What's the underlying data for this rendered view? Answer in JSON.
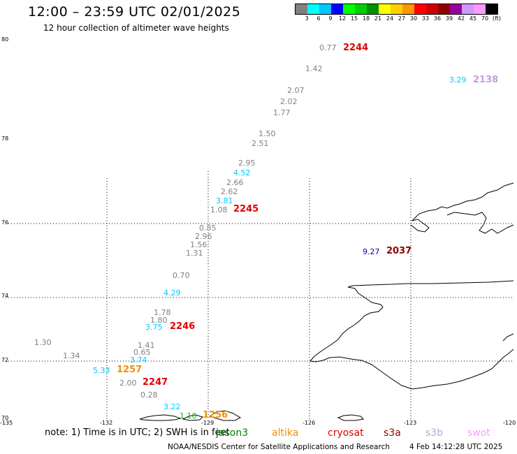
{
  "header": {
    "title": "12:00 – 23:59 UTC 02/01/2025",
    "subtitle": "12 hour collection of altimeter wave heights"
  },
  "colorbar": {
    "colors": [
      "#808080",
      "#00ffff",
      "#00c8ff",
      "#0000ff",
      "#00ff00",
      "#00d000",
      "#009000",
      "#ffff00",
      "#ffd000",
      "#ff9900",
      "#ff0000",
      "#d00000",
      "#900000",
      "#990099",
      "#cc99ff",
      "#ff99ff",
      "#000000"
    ],
    "labels": [
      "3",
      "6",
      "9",
      "12",
      "15",
      "18",
      "21",
      "24",
      "27",
      "30",
      "33",
      "36",
      "39",
      "42",
      "45",
      "70",
      "(ft)"
    ]
  },
  "axes": {
    "y_ticks": [
      "80",
      "78",
      "76",
      "74",
      "72",
      "70"
    ],
    "x_ticks": [
      "-135",
      "-132",
      "-129",
      "-126",
      "-123",
      "-120"
    ]
  },
  "wave_values": [
    {
      "text": "0.77",
      "color": "#808080"
    },
    {
      "text": "1.42",
      "color": "#808080"
    },
    {
      "text": "2.07",
      "color": "#808080"
    },
    {
      "text": "2.02",
      "color": "#808080"
    },
    {
      "text": "1.77",
      "color": "#808080"
    },
    {
      "text": "1.50",
      "color": "#808080"
    },
    {
      "text": "2.51",
      "color": "#808080"
    },
    {
      "text": "2.95",
      "color": "#808080"
    },
    {
      "text": "4.52",
      "color": "#00c8ff"
    },
    {
      "text": "2.66",
      "color": "#808080"
    },
    {
      "text": "2.62",
      "color": "#808080"
    },
    {
      "text": "3.81",
      "color": "#00c8ff"
    },
    {
      "text": "1.08",
      "color": "#808080"
    },
    {
      "text": "0.85",
      "color": "#808080"
    },
    {
      "text": "2.96",
      "color": "#808080"
    },
    {
      "text": "1.56",
      "color": "#808080"
    },
    {
      "text": "1.31",
      "color": "#808080"
    },
    {
      "text": "0.70",
      "color": "#808080"
    },
    {
      "text": "4.29",
      "color": "#00c8ff"
    },
    {
      "text": "1.78",
      "color": "#808080"
    },
    {
      "text": "1.80",
      "color": "#808080"
    },
    {
      "text": "3.75",
      "color": "#00c8ff"
    },
    {
      "text": "1.41",
      "color": "#808080"
    },
    {
      "text": "0.65",
      "color": "#808080"
    },
    {
      "text": "3.74",
      "color": "#00c8ff"
    },
    {
      "text": "1.30",
      "color": "#808080"
    },
    {
      "text": "1.34",
      "color": "#808080"
    },
    {
      "text": "5.33",
      "color": "#00c8ff"
    },
    {
      "text": "2.00",
      "color": "#808080"
    },
    {
      "text": "0.28",
      "color": "#808080"
    },
    {
      "text": "3.22",
      "color": "#00c8ff"
    },
    {
      "text": "1.10",
      "color": "#00c000"
    },
    {
      "text": "3.29",
      "color": "#00c8ff"
    },
    {
      "text": "9.27",
      "color": "#0000a0"
    }
  ],
  "pass_times": [
    {
      "text": "2244",
      "color": "#e00000"
    },
    {
      "text": "2138",
      "color": "#c0a0e0"
    },
    {
      "text": "2245",
      "color": "#e00000"
    },
    {
      "text": "2037",
      "color": "#900000"
    },
    {
      "text": "2246",
      "color": "#e00000"
    },
    {
      "text": "1257",
      "color": "#f09000"
    },
    {
      "text": "2247",
      "color": "#e00000"
    },
    {
      "text": "1256",
      "color": "#f09000"
    }
  ],
  "note": "note: 1) Time is in UTC; 2) SWH is in feet",
  "legend": [
    {
      "text": "jason3",
      "color": "#008000"
    },
    {
      "text": "altika",
      "color": "#f09000"
    },
    {
      "text": "cryosat",
      "color": "#e00000"
    },
    {
      "text": "s3a",
      "color": "#900000"
    },
    {
      "text": "s3b",
      "color": "#c0a0e0"
    },
    {
      "text": "swot",
      "color": "#ff99ff"
    }
  ],
  "footer": {
    "left": "NOAA/NESDIS Center for Satellite Applications and Research",
    "right": "4 Feb 14:12:28 UTC 2025"
  }
}
